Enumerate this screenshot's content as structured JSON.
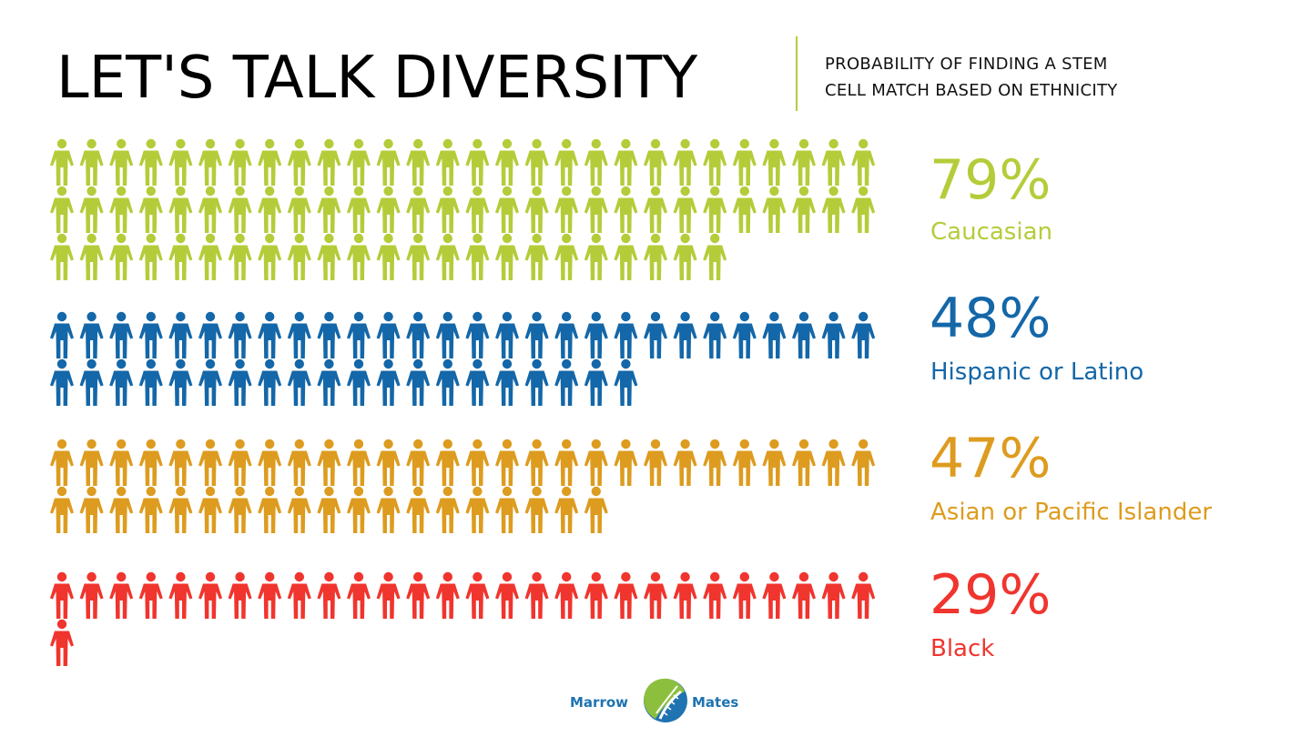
{
  "header": {
    "title": "LET'S TALK DIVERSITY",
    "subtitle_line1": "PROBABILITY OF FINDING A STEM",
    "subtitle_line2": "CELL MATCH BASED ON ETHNICITY",
    "divider_color": "#b5cc3a"
  },
  "chart_data": {
    "type": "pictogram",
    "icon": "person-icon",
    "units": "percent",
    "categories": [
      "Caucasian",
      "Hispanic or Latino",
      "Asian or Pacific Islander",
      "Black"
    ],
    "values": [
      79,
      48,
      47,
      29
    ],
    "labels": [
      "79%",
      "48%",
      "47%",
      "29%"
    ],
    "colors": [
      "#b5cc3a",
      "#1467a8",
      "#dd9c1f",
      "#f0352e"
    ]
  },
  "logo": {
    "left_word": "Marrow",
    "right_word": "Mates",
    "colors": {
      "blue": "#1e73b0",
      "green": "#8dbf3f"
    }
  }
}
